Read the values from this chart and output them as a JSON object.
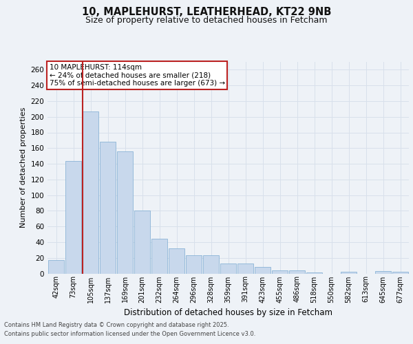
{
  "title1": "10, MAPLEHURST, LEATHERHEAD, KT22 9NB",
  "title2": "Size of property relative to detached houses in Fetcham",
  "xlabel": "Distribution of detached houses by size in Fetcham",
  "ylabel": "Number of detached properties",
  "annotation_line1": "10 MAPLEHURST: 114sqm",
  "annotation_line2": "← 24% of detached houses are smaller (218)",
  "annotation_line3": "75% of semi-detached houses are larger (673) →",
  "bar_labels": [
    "42sqm",
    "73sqm",
    "105sqm",
    "137sqm",
    "169sqm",
    "201sqm",
    "232sqm",
    "264sqm",
    "296sqm",
    "328sqm",
    "359sqm",
    "391sqm",
    "423sqm",
    "455sqm",
    "486sqm",
    "518sqm",
    "550sqm",
    "582sqm",
    "613sqm",
    "645sqm",
    "677sqm"
  ],
  "bar_values": [
    17,
    144,
    207,
    168,
    156,
    80,
    44,
    32,
    23,
    23,
    13,
    13,
    8,
    4,
    4,
    1,
    0,
    2,
    0,
    3,
    2
  ],
  "bar_color": "#c8d8ec",
  "bar_edge_color": "#7aaad0",
  "marker_color": "#bb2222",
  "ylim": [
    0,
    270
  ],
  "yticks": [
    0,
    20,
    40,
    60,
    80,
    100,
    120,
    140,
    160,
    180,
    200,
    220,
    240,
    260
  ],
  "footer1": "Contains HM Land Registry data © Crown copyright and database right 2025.",
  "footer2": "Contains public sector information licensed under the Open Government Licence v3.0.",
  "bg_color": "#eef2f7",
  "grid_color": "#d8e0eb"
}
